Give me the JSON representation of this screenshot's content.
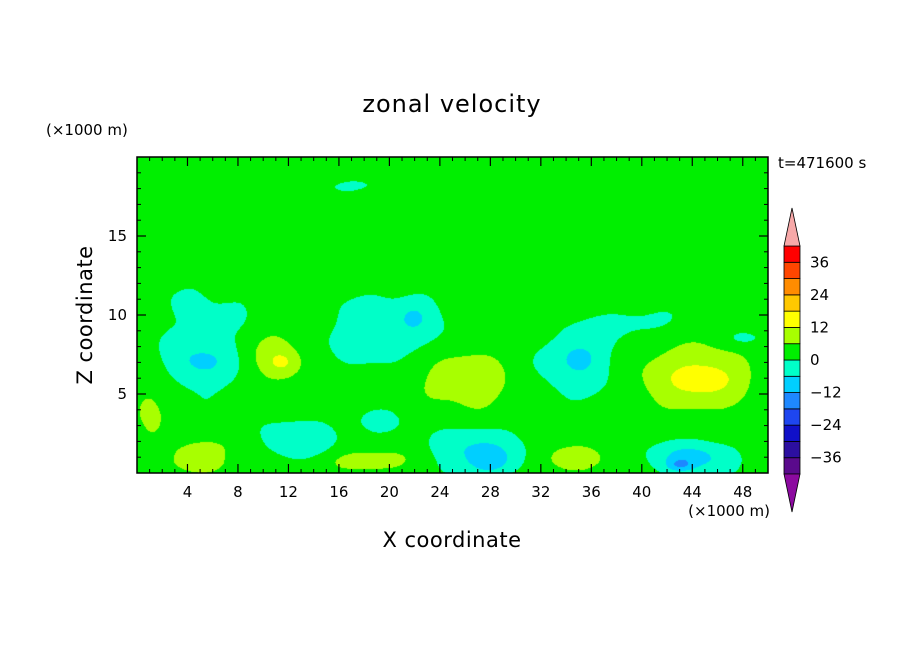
{
  "chart_data": {
    "type": "heatmap",
    "title": "zonal velocity",
    "xlabel": "X coordinate",
    "ylabel": "Z coordinate",
    "x_unit": "(×1000 m)",
    "y_unit": "(×1000 m)",
    "time_label": "t=471600 s",
    "xlim": [
      0,
      50
    ],
    "ylim": [
      0,
      20
    ],
    "x_ticks": [
      4,
      8,
      12,
      16,
      20,
      24,
      28,
      32,
      36,
      40,
      44,
      48
    ],
    "y_ticks": [
      5,
      10,
      15
    ],
    "colorbar": {
      "levels": [
        -42,
        -36,
        -30,
        -24,
        -18,
        -12,
        -6,
        0,
        6,
        12,
        18,
        24,
        30,
        36,
        42
      ],
      "colors": [
        "#5a0a8c",
        "#2c0fa0",
        "#1010c8",
        "#1e46f0",
        "#1e88ff",
        "#00cfff",
        "#00ffc8",
        "#00ef00",
        "#a8ff00",
        "#ffff00",
        "#ffc800",
        "#ff8c00",
        "#ff4600",
        "#ff0000"
      ],
      "under_color": "#8c0aa0",
      "over_color": "#f7a8a8",
      "tick_labels": [
        {
          "value": 36,
          "label": "36"
        },
        {
          "value": 24,
          "label": "24"
        },
        {
          "value": 12,
          "label": "12"
        },
        {
          "value": 0,
          "label": "0"
        },
        {
          "value": -12,
          "label": "−12"
        },
        {
          "value": -24,
          "label": "−24"
        },
        {
          "value": -36,
          "label": "−36"
        }
      ]
    },
    "field_background": 2,
    "features": [
      {
        "x": 18,
        "z": 18.2,
        "sx": 5.0,
        "sz": 0.6,
        "amp": -2.5
      },
      {
        "x": 38,
        "z": 17.0,
        "sx": 9.0,
        "sz": 3.0,
        "amp": 2.5
      },
      {
        "x": 31,
        "z": 13.0,
        "sx": 5.0,
        "sz": 4.0,
        "amp": 2.0
      },
      {
        "x": 6,
        "z": 9.0,
        "sx": 6.0,
        "sz": 5.0,
        "amp": -2.5
      },
      {
        "x": 5,
        "z": 7.0,
        "sx": 2.5,
        "sz": 1.3,
        "amp": -7.0
      },
      {
        "x": 11,
        "z": 7.3,
        "sx": 2.3,
        "sz": 2.1,
        "amp": 8.5
      },
      {
        "x": 11.5,
        "z": 7.0,
        "sx": 1.0,
        "sz": 0.6,
        "amp": 5.0
      },
      {
        "x": 20,
        "z": 9.0,
        "sx": 5.0,
        "sz": 2.2,
        "amp": -5.5
      },
      {
        "x": 22,
        "z": 10.0,
        "sx": 1.3,
        "sz": 1.0,
        "amp": -5.0
      },
      {
        "x": 25,
        "z": 6.0,
        "sx": 3.5,
        "sz": 2.0,
        "amp": 6.5
      },
      {
        "x": 27.5,
        "z": 5.8,
        "sx": 1.8,
        "sz": 1.8,
        "amp": 5.0
      },
      {
        "x": 35,
        "z": 7.0,
        "sx": 3.0,
        "sz": 2.2,
        "amp": -7.0
      },
      {
        "x": 35,
        "z": 7.3,
        "sx": 1.0,
        "sz": 0.6,
        "amp": -6.0
      },
      {
        "x": 44,
        "z": 6.0,
        "sx": 4.5,
        "sz": 2.3,
        "amp": 9.5
      },
      {
        "x": 45.5,
        "z": 6.0,
        "sx": 2.5,
        "sz": 1.0,
        "amp": 5.0
      },
      {
        "x": 48,
        "z": 8.5,
        "sx": 1.5,
        "sz": 0.5,
        "amp": -4.5
      },
      {
        "x": 5,
        "z": 1.4,
        "sx": 2.6,
        "sz": 0.9,
        "amp": 6.5
      },
      {
        "x": 5,
        "z": 0.5,
        "sx": 2.0,
        "sz": 0.6,
        "amp": 6.0
      },
      {
        "x": 13,
        "z": 2.0,
        "sx": 2.5,
        "sz": 1.2,
        "amp": -7.5
      },
      {
        "x": 18.5,
        "z": 0.8,
        "sx": 4.0,
        "sz": 0.8,
        "amp": 7.0
      },
      {
        "x": 19,
        "z": 3.2,
        "sx": 2.5,
        "sz": 1.0,
        "amp": -3.0
      },
      {
        "x": 27,
        "z": 1.3,
        "sx": 3.5,
        "sz": 1.4,
        "amp": -9.0
      },
      {
        "x": 28,
        "z": 0.7,
        "sx": 1.5,
        "sz": 0.7,
        "amp": -6.0
      },
      {
        "x": 34.5,
        "z": 0.9,
        "sx": 2.5,
        "sz": 0.9,
        "amp": 8.0
      },
      {
        "x": 44,
        "z": 1.0,
        "sx": 3.0,
        "sz": 1.0,
        "amp": -10.5
      },
      {
        "x": 43,
        "z": 0.5,
        "sx": 1.0,
        "sz": 0.4,
        "amp": -8.0
      },
      {
        "x": 1,
        "z": 4.0,
        "sx": 1.6,
        "sz": 3.0,
        "amp": 5.5
      },
      {
        "x": 17,
        "z": 13.3,
        "sx": 0.7,
        "sz": 0.9,
        "amp": 3.0
      },
      {
        "x": 9,
        "z": 12.3,
        "sx": 2.5,
        "sz": 0.5,
        "amp": 1.0
      },
      {
        "x": 40,
        "z": 9.5,
        "sx": 4.0,
        "sz": 1.0,
        "amp": -3.5
      }
    ]
  }
}
